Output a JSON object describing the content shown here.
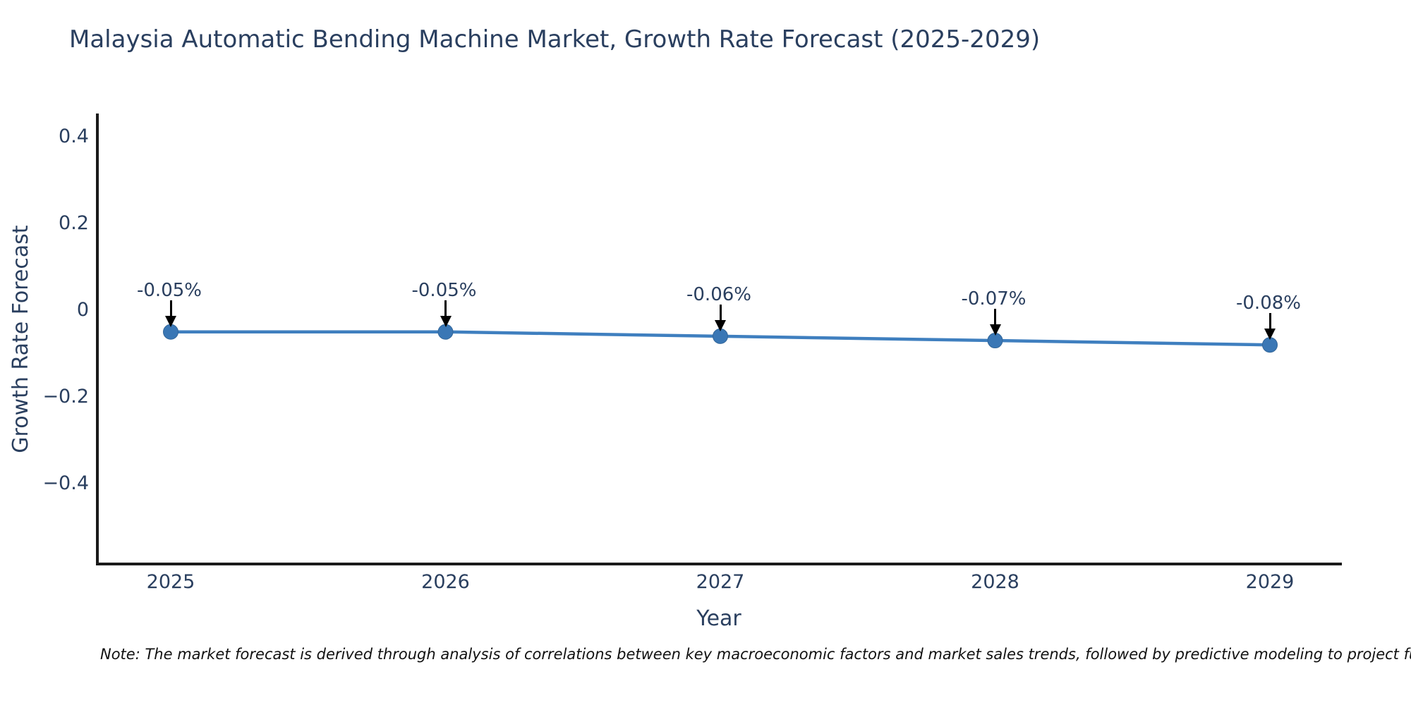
{
  "title": "Malaysia Automatic Bending Machine Market, Growth Rate Forecast (2025-2029)",
  "footnote": "Note: The market forecast is derived through analysis of correlations between key macroeconomic factors and market sales trends, followed by predictive modeling to project future sales.",
  "chart_data": {
    "type": "line",
    "title": "Malaysia Automatic Bending Machine Market, Growth Rate Forecast (2025-2029)",
    "xlabel": "Year",
    "ylabel": "Growth Rate Forecast",
    "x": [
      2025,
      2026,
      2027,
      2028,
      2029
    ],
    "x_tick_labels": [
      "2025",
      "2026",
      "2027",
      "2028",
      "2029"
    ],
    "values": [
      -0.05,
      -0.05,
      -0.06,
      -0.07,
      -0.08
    ],
    "point_labels": [
      "-0.05%",
      "-0.05%",
      "-0.06%",
      "-0.07%",
      "-0.08%"
    ],
    "y_ticks": [
      {
        "value": 0.4,
        "label": "0.4"
      },
      {
        "value": 0.2,
        "label": "0.2"
      },
      {
        "value": 0,
        "label": "0"
      },
      {
        "value": -0.2,
        "label": "−0.2"
      },
      {
        "value": -0.4,
        "label": "−0.4"
      }
    ],
    "ylim": [
      -0.585,
      0.455
    ],
    "grid": false,
    "legend": false,
    "colors": {
      "line": "#3f7fbf",
      "marker": "#3a77b5",
      "marker_edge": "#336699",
      "annotation_arrow": "#000000",
      "text": "#2a3f5f",
      "axis_line": "#1a1a1a"
    }
  }
}
